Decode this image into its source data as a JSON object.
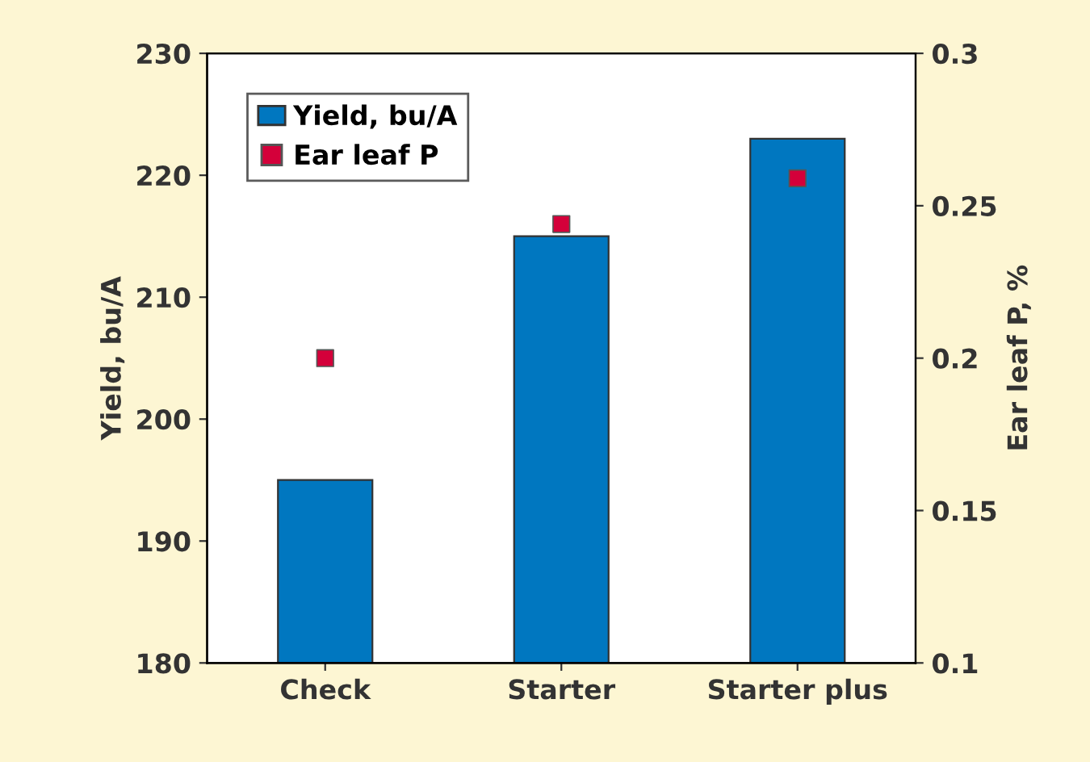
{
  "chart_data": {
    "type": "bar",
    "categories": [
      "Check",
      "Starter",
      "Starter plus"
    ],
    "ylabel": "Yield, bu/A",
    "y2label": "Ear leaf P, %",
    "series": [
      {
        "name": "Yield, bu/A",
        "color": "#0077c0",
        "values": [
          195,
          215,
          223
        ]
      },
      {
        "name": "Ear leaf P",
        "type": "scatter",
        "axis": "y2",
        "color": "#d4003a",
        "marker": "square",
        "values": [
          0.2,
          0.244,
          0.259
        ]
      }
    ],
    "ylim": [
      180,
      230
    ],
    "yticks": [
      180,
      190,
      200,
      210,
      220,
      230
    ],
    "y2lim": [
      0.1,
      0.3
    ],
    "y2ticks": [
      0.1,
      0.15,
      0.2,
      0.25,
      0.3
    ],
    "grid": false,
    "legend": "top left"
  }
}
